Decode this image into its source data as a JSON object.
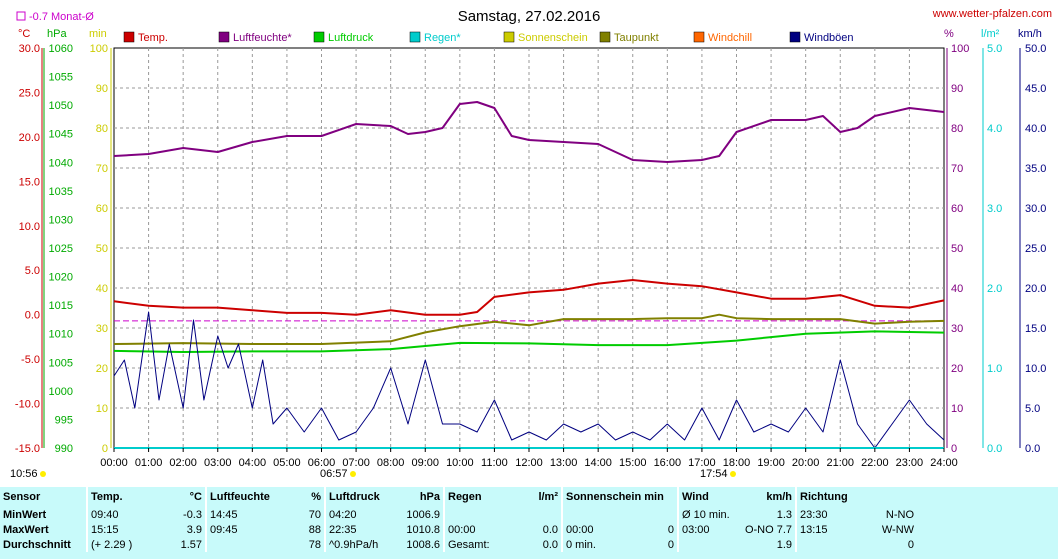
{
  "header": {
    "title": "Samstag, 27.02.2016",
    "site": "www.wetter-pfalzen.com",
    "monat_label": "-0.7 Monat-Ø"
  },
  "units": {
    "temp": "°C",
    "pressure": "hPa",
    "sun": "min",
    "humidity": "%",
    "rain": "l/m²",
    "wind": "km/h"
  },
  "legend": [
    {
      "name": "Temp.",
      "color": "#cc0000"
    },
    {
      "name": "Luftfeuchte*",
      "color": "#800080"
    },
    {
      "name": "Luftdruck",
      "color": "#00cc00"
    },
    {
      "name": "Regen*",
      "color": "#00cccc"
    },
    {
      "name": "Sonnenschein",
      "color": "#cccc00"
    },
    {
      "name": "Taupunkt",
      "color": "#808000"
    },
    {
      "name": "Windchill",
      "color": "#ff6600"
    },
    {
      "name": "Windböen",
      "color": "#000080"
    }
  ],
  "markers": {
    "sunrise": "06:57",
    "sunset": "17:54",
    "left_time": "10:56"
  },
  "chart_data": {
    "type": "line",
    "title": "Samstag, 27.02.2016",
    "x_ticks": [
      "00:00",
      "01:00",
      "02:00",
      "03:00",
      "04:00",
      "05:00",
      "06:00",
      "07:00",
      "08:00",
      "09:00",
      "10:00",
      "11:00",
      "12:00",
      "13:00",
      "14:00",
      "15:00",
      "16:00",
      "17:00",
      "18:00",
      "19:00",
      "20:00",
      "21:00",
      "22:00",
      "23:00",
      "24:00"
    ],
    "axes": {
      "temp": {
        "label": "°C",
        "range": [
          -15,
          30
        ],
        "ticks": [
          "30.0",
          "25.0",
          "20.0",
          "15.0",
          "10.0",
          "5.0",
          "0.0",
          "-5.0",
          "-10.0",
          "-15.0"
        ]
      },
      "pressure": {
        "label": "hPa",
        "range": [
          990,
          1060
        ],
        "ticks": [
          "1060",
          "1055",
          "1050",
          "1045",
          "1040",
          "1035",
          "1030",
          "1025",
          "1020",
          "1015",
          "1010",
          "1005",
          "1000",
          "995",
          "990"
        ]
      },
      "sun": {
        "label": "min",
        "range": [
          0,
          100
        ],
        "ticks": [
          "100",
          "90",
          "80",
          "70",
          "60",
          "50",
          "40",
          "30",
          "20",
          "10",
          "0"
        ]
      },
      "humidity": {
        "label": "%",
        "range": [
          0,
          100
        ],
        "ticks": [
          "100",
          "90",
          "80",
          "70",
          "60",
          "50",
          "40",
          "30",
          "20",
          "10",
          "0"
        ]
      },
      "rain": {
        "label": "l/m²",
        "range": [
          0,
          5
        ],
        "ticks": [
          "5.0",
          "4.0",
          "3.0",
          "2.0",
          "1.0",
          "0.0"
        ]
      },
      "wind": {
        "label": "km/h",
        "range": [
          0,
          50
        ],
        "ticks": [
          "50.0",
          "45.0",
          "40.0",
          "35.0",
          "30.0",
          "25.0",
          "20.0",
          "15.0",
          "10.0",
          "5.0",
          "0.0"
        ]
      }
    },
    "grid": true,
    "monthly_mean_temp": -0.7,
    "series": [
      {
        "name": "Luftfeuchte*",
        "axis": "humidity",
        "color": "#800080",
        "x": [
          0,
          1,
          2,
          3,
          4,
          5,
          6,
          7,
          8,
          8.5,
          9,
          9.5,
          10,
          10.5,
          11,
          11.5,
          12,
          13,
          14,
          15,
          16,
          17,
          17.5,
          18,
          19,
          20,
          20.5,
          21,
          21.5,
          22,
          23,
          24
        ],
        "y": [
          73,
          73.5,
          75,
          74,
          76.5,
          78,
          78,
          81,
          80.5,
          78.5,
          79,
          80,
          86,
          86.5,
          85,
          78,
          77,
          76.5,
          76,
          72,
          71.5,
          72,
          73,
          79,
          82,
          82,
          83,
          79,
          80,
          83,
          85,
          84
        ]
      },
      {
        "name": "Temp.",
        "axis": "temp",
        "color": "#cc0000",
        "x": [
          0,
          1,
          2,
          3,
          4,
          5,
          6,
          7,
          8,
          9,
          10,
          10.5,
          11,
          12,
          13,
          14,
          15,
          16,
          17,
          18,
          19,
          20,
          21,
          22,
          23,
          24
        ],
        "y": [
          1.5,
          1,
          0.8,
          0.8,
          0.5,
          0.2,
          0.2,
          0,
          0.5,
          0,
          0,
          0.3,
          2,
          2.5,
          2.8,
          3.5,
          3.9,
          3.5,
          3.2,
          2.5,
          1.8,
          1.8,
          2.2,
          1,
          0.8,
          1.6
        ]
      },
      {
        "name": "Luftdruck",
        "axis": "pressure",
        "color": "#00cc00",
        "x": [
          0,
          2,
          4,
          6,
          8,
          10,
          12,
          14,
          16,
          18,
          20,
          22,
          24
        ],
        "y": [
          1007,
          1006.8,
          1006.9,
          1006.9,
          1007.3,
          1008.4,
          1008.3,
          1008,
          1008,
          1008.8,
          1010,
          1010.4,
          1010.2
        ]
      },
      {
        "name": "Taupunkt",
        "axis": "temp",
        "color": "#808000",
        "x": [
          0,
          2,
          4,
          6,
          8,
          9,
          10,
          11,
          12,
          13,
          14,
          15,
          16,
          17,
          17.5,
          18,
          19,
          20,
          21,
          22,
          23,
          24
        ],
        "y": [
          -3.3,
          -3.2,
          -3.3,
          -3.3,
          -3,
          -2,
          -1.3,
          -0.8,
          -1.2,
          -0.5,
          -0.5,
          -0.5,
          -0.4,
          -0.4,
          0,
          -0.4,
          -0.5,
          -0.5,
          -0.5,
          -1,
          -0.8,
          -0.7
        ]
      },
      {
        "name": "Windböen",
        "axis": "wind",
        "color": "#000080",
        "x": [
          0,
          0.3,
          0.6,
          1,
          1.3,
          1.6,
          2,
          2.3,
          2.6,
          3,
          3.3,
          3.6,
          4,
          4.3,
          4.6,
          5,
          5.5,
          6,
          6.5,
          7,
          7.5,
          8,
          8.5,
          9,
          9.5,
          10,
          10.5,
          11,
          11.5,
          12,
          12.5,
          13,
          13.5,
          14,
          14.5,
          15,
          15.5,
          16,
          16.5,
          17,
          17.5,
          18,
          18.5,
          19,
          19.5,
          20,
          20.5,
          21,
          21.5,
          22,
          22.5,
          23,
          23.5,
          24
        ],
        "y": [
          9,
          11,
          5,
          17,
          6,
          13,
          5,
          16,
          6,
          14,
          10,
          13,
          5,
          11,
          3,
          5,
          2,
          5,
          1,
          2,
          5,
          10,
          3,
          11,
          3,
          3,
          2,
          6,
          1,
          2,
          1,
          3,
          2,
          3,
          1,
          2,
          1,
          3,
          1,
          5,
          1,
          6,
          2,
          3,
          2,
          5,
          2,
          11,
          3,
          0,
          3,
          6,
          3,
          1
        ]
      },
      {
        "name": "Regen*",
        "axis": "rain",
        "color": "#00cccc",
        "x": [
          0,
          24
        ],
        "y": [
          0,
          0
        ]
      }
    ]
  },
  "stats": {
    "headers": {
      "sensor": "Sensor",
      "temp": "Temp.",
      "temp_unit": "°C",
      "hum": "Luftfeuchte",
      "hum_unit": "%",
      "press": "Luftdruck",
      "press_unit": "hPa",
      "rain": "Regen",
      "rain_unit": "l/m²",
      "sun": "Sonnenschein min",
      "wind": "Wind",
      "wind_unit": "km/h",
      "dir": "Richtung"
    },
    "rows": [
      {
        "label": "MinWert",
        "t_time": "09:40",
        "t_val": "-0.3",
        "h_time": "14:45",
        "h_val": "70",
        "p_time": "04:20",
        "p_val": "1006.9",
        "r_time": "",
        "r_val": "",
        "s_time": "",
        "s_val": "",
        "w_time": "Ø 10 min.",
        "w_val": "1.3",
        "d_time": "23:30",
        "d_val": "N-NO"
      },
      {
        "label": "MaxWert",
        "t_time": "15:15",
        "t_val": "3.9",
        "h_time": "09:45",
        "h_val": "88",
        "p_time": "22:35",
        "p_val": "1010.8",
        "r_time": "00:00",
        "r_val": "0.0",
        "s_time": "00:00",
        "s_val": "0",
        "w_time": "03:00",
        "w_val": "O-NO 7.7",
        "d_time": "13:15",
        "d_val": "W-NW"
      },
      {
        "label": "Durchschnitt",
        "t_time": "(+ 2.29 )",
        "t_val": "1.57",
        "h_time": "",
        "h_val": "78",
        "p_time": "^0.9hPa/h",
        "p_val": "1008.6",
        "r_time": "Gesamt:",
        "r_val": "0.0",
        "s_time": "0 min.",
        "s_val": "0",
        "w_time": "",
        "w_val": "1.9",
        "d_time": "",
        "d_val": "0"
      }
    ]
  }
}
